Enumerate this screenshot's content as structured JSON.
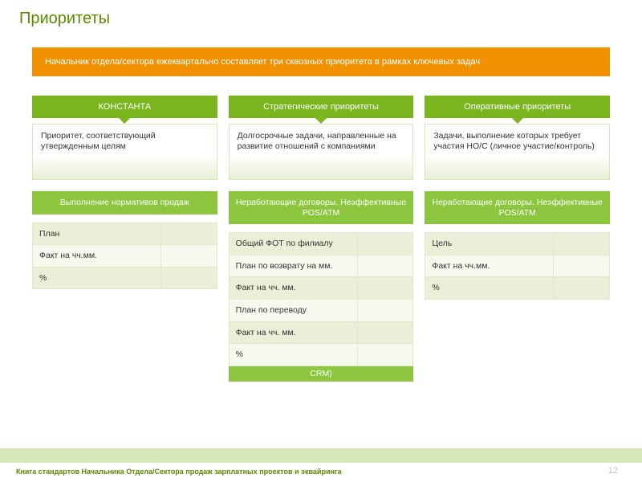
{
  "colors": {
    "title": "#5a8a00",
    "banner_bg": "#f29100",
    "header_bg": "#7ab51d",
    "subheader_bg": "#8cc63f",
    "row_odd": "#e9f0d7",
    "row_even": "#f6f9ee",
    "footer_bar": "#d7e6b8",
    "pagenum": "#bfbfbf"
  },
  "title": "Приоритеты",
  "banner": "Начальник отдела/сектора ежеквартально составляет три сквозных приоритета в рамках ключевых задач",
  "columns": [
    {
      "header": "КОНСТАНТА",
      "desc": "Приоритет, соответствующий утвержденным целям",
      "sub": "Выполнение нормативов продаж",
      "rows": [
        {
          "a": "План",
          "b": ""
        },
        {
          "a": "Факт на чч.мм.",
          "b": ""
        },
        {
          "a": "%",
          "b": ""
        }
      ]
    },
    {
      "header": "Стратегические приоритеты",
      "desc": "Долгосрочные задачи, направленные\nна развитие отношений с компаниями",
      "sub": "Неработающие  договоры. Неэффективные POS/ATM",
      "rows": [
        {
          "a": "Общий ФОТ по филиалу",
          "b": ""
        },
        {
          "a": "План по возврату на мм.",
          "b": ""
        },
        {
          "a": "Факт на чч. мм.",
          "b": ""
        },
        {
          "a": "План по переводу",
          "b": ""
        },
        {
          "a": "Факт на чч. мм.",
          "b": ""
        },
        {
          "a": "%",
          "b": ""
        }
      ],
      "crm": "CRM)"
    },
    {
      "header": "Оперативные приоритеты",
      "desc": "Задачи, выполнение которых требует участия НО/С (личное участие/контроль)",
      "sub": "Неработающие договоры. Неэффективные POS/ATM",
      "rows": [
        {
          "a": "Цель",
          "b": ""
        },
        {
          "a": "Факт на чч.мм.",
          "b": ""
        },
        {
          "a": "%",
          "b": ""
        }
      ]
    }
  ],
  "footer": "Книга стандартов  Начальника Отдела/Сектора  продаж зарплатных проектов и эквайринга",
  "page_number": "12"
}
